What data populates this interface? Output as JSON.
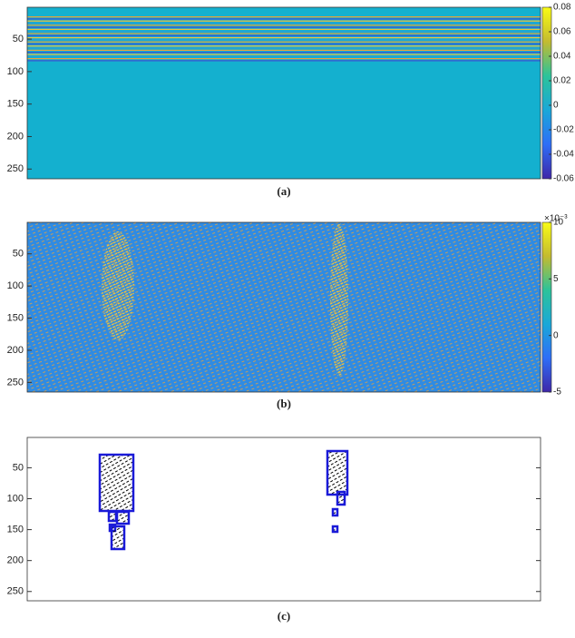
{
  "chart_data": [
    {
      "type": "heatmap",
      "caption": "(a)",
      "color": "#14b0cf",
      "ylim": [
        1,
        265
      ],
      "yticks": [
        50,
        100,
        150,
        200,
        250
      ],
      "colorbar": {
        "lim": [
          -0.06,
          0.08
        ],
        "ticks": [
          -0.06,
          -0.04,
          -0.02,
          0,
          0.02,
          0.04,
          0.06,
          0.08
        ]
      }
    },
    {
      "type": "heatmap",
      "caption": "(b)",
      "color": "#2f8be3",
      "ylim": [
        1,
        265
      ],
      "yticks": [
        50,
        100,
        150,
        200,
        250
      ],
      "colorbar": {
        "lim": [
          -5,
          10
        ],
        "ticks": [
          -5,
          0,
          5,
          10
        ],
        "exponent_label": "×10⁻³"
      }
    },
    {
      "type": "heatmap",
      "caption": "(c)",
      "color": "#ffffff",
      "ylim": [
        1,
        265
      ],
      "yticks": [
        50,
        100,
        150,
        200,
        250
      ]
    }
  ]
}
